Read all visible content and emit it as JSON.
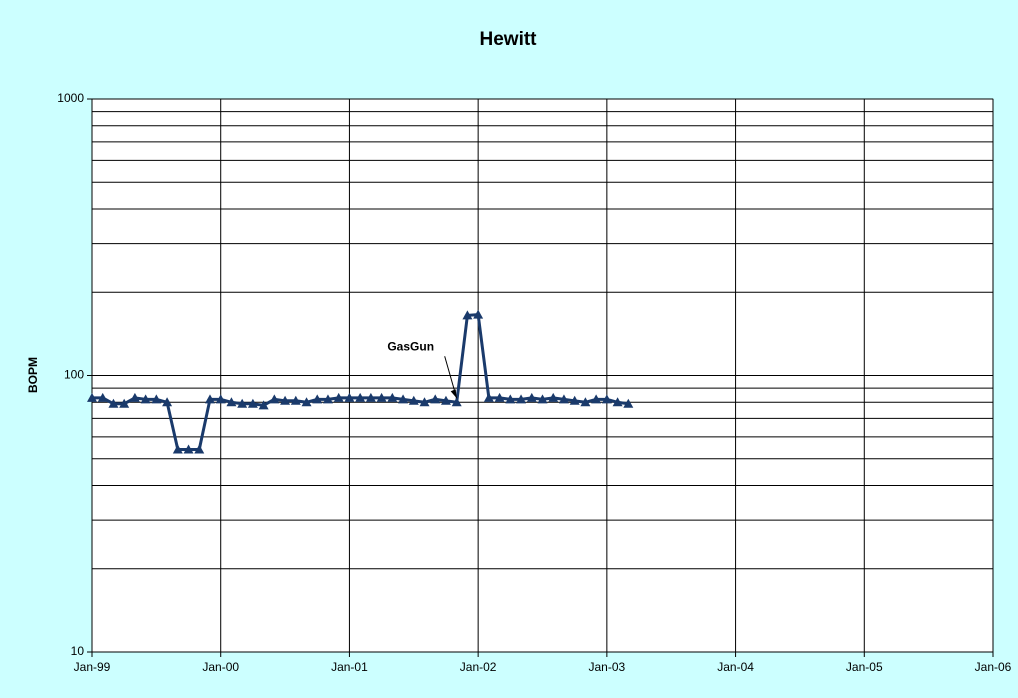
{
  "chart_data": {
    "type": "line",
    "title": "Hewitt",
    "y_label": "BOPM",
    "x": [
      "1999-01",
      "1999-02",
      "1999-03",
      "1999-04",
      "1999-05",
      "1999-06",
      "1999-07",
      "1999-08",
      "1999-09",
      "1999-10",
      "1999-11",
      "1999-12",
      "2000-01",
      "2000-02",
      "2000-03",
      "2000-04",
      "2000-05",
      "2000-06",
      "2000-07",
      "2000-08",
      "2000-09",
      "2000-10",
      "2000-11",
      "2000-12",
      "2001-01",
      "2001-02",
      "2001-03",
      "2001-04",
      "2001-05",
      "2001-06",
      "2001-07",
      "2001-08",
      "2001-09",
      "2001-10",
      "2001-11",
      "2001-12",
      "2002-01",
      "2002-02",
      "2002-03",
      "2002-04",
      "2002-05",
      "2002-06",
      "2002-07",
      "2002-08",
      "2002-09",
      "2002-10",
      "2002-11",
      "2002-12",
      "2003-01",
      "2003-02",
      "2003-03"
    ],
    "series": [
      {
        "color": "#1a3a6b",
        "marker": "triangle",
        "values": [
          83,
          83,
          79,
          79,
          83,
          82,
          82,
          80,
          54,
          54,
          54,
          82,
          82,
          80,
          79,
          79,
          78,
          82,
          81,
          81,
          80,
          82,
          82,
          83,
          83,
          83,
          83,
          83,
          83,
          82,
          81,
          80,
          82,
          81,
          80,
          165,
          166,
          83,
          83,
          82,
          82,
          83,
          82,
          83,
          82,
          81,
          80,
          82,
          82,
          80,
          79
        ]
      }
    ],
    "xlim": [
      "1999-01",
      "2006-01"
    ],
    "xticks": [
      {
        "value": "1999-01",
        "label": "Jan-99"
      },
      {
        "value": "2000-01",
        "label": "Jan-00"
      },
      {
        "value": "2001-01",
        "label": "Jan-01"
      },
      {
        "value": "2002-01",
        "label": "Jan-02"
      },
      {
        "value": "2003-01",
        "label": "Jan-03"
      },
      {
        "value": "2004-01",
        "label": "Jan-04"
      },
      {
        "value": "2005-01",
        "label": "Jan-05"
      },
      {
        "value": "2006-01",
        "label": "Jan-06"
      }
    ],
    "ylim": [
      10,
      1000
    ],
    "yticks": [
      10,
      100,
      1000
    ],
    "yminorticks": [
      20,
      30,
      40,
      50,
      60,
      70,
      80,
      90,
      200,
      300,
      400,
      500,
      600,
      700,
      800,
      900
    ],
    "log_y": true,
    "grid": true,
    "annotations": [
      {
        "text": "GasGun",
        "x": "2001-11",
        "y": 80
      }
    ]
  }
}
